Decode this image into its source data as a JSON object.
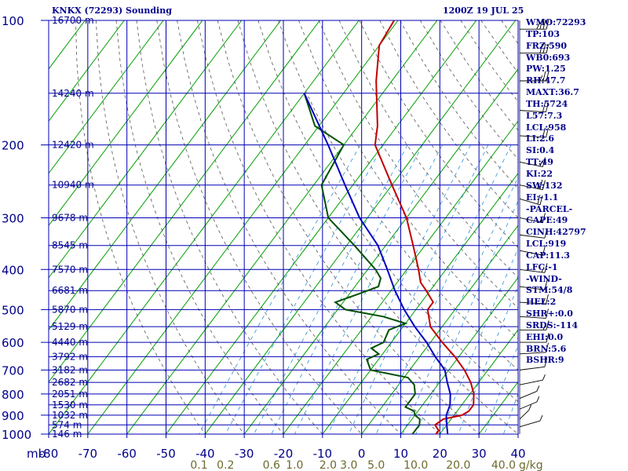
{
  "header": {
    "station_title": "KNKX (72293) Sounding",
    "valid_time": "1200Z 19 JUL 25"
  },
  "indices": [
    "WMO:72293",
    "TP:103",
    "FRZ:590",
    "WB0:693",
    "PW:1.25",
    "RH:47.7",
    "MAXT:36.7",
    "TH:5724",
    "L57:7.3",
    "LCL:958",
    "LI:2.6",
    "SI:0.4",
    "TT:49",
    "KI:22",
    "SW:132",
    "EI:-1.1",
    "-PARCEL-",
    "CAPE:49",
    "CINH:42797",
    "LCL:919",
    "CAP:11.3",
    "LFC:-1",
    "-WIND-",
    "STM:54/8",
    "HEL:2",
    "SHR+:0.0",
    "SRDS:-114",
    "EHI:0.0",
    "BRN:5.6",
    "BSHR:9"
  ],
  "colors": {
    "grid": "#0000b4",
    "isotherm_skew": "#00a000",
    "dry_adiabat": "#555555",
    "mixing_ratio": "#2f8fd8",
    "temperature": "#c00000",
    "dewpoint": "#005000",
    "parcel": "#0000c0",
    "text": "#00008b",
    "wind": "#000000"
  },
  "chart_data": {
    "type": "line",
    "title": "KNKX (72293) Sounding",
    "xlabel": "",
    "ylabel": "mb",
    "y_scale": "log-pressure",
    "xlim": [
      -80,
      40
    ],
    "ylim": [
      1000,
      100
    ],
    "x_ticks": [
      -80,
      -70,
      -60,
      -50,
      -40,
      -30,
      -20,
      -10,
      0,
      10,
      20,
      30,
      40
    ],
    "x_tick_labels": [
      "-80",
      "-70",
      "-60",
      "-50",
      "-40",
      "-30",
      "-20",
      "-10",
      "0",
      "10",
      "20",
      "30",
      "40"
    ],
    "pressure_levels": [
      100,
      200,
      300,
      400,
      500,
      600,
      700,
      800,
      900,
      1000
    ],
    "height_labels": [
      {
        "p": 100,
        "label": "16700 m"
      },
      {
        "p": 150,
        "label": "14240 m"
      },
      {
        "p": 200,
        "label": "12420 m"
      },
      {
        "p": 250,
        "label": "10940 m"
      },
      {
        "p": 300,
        "label": "9678 m"
      },
      {
        "p": 350,
        "label": "8545 m"
      },
      {
        "p": 400,
        "label": "7570 m"
      },
      {
        "p": 450,
        "label": "6681 m"
      },
      {
        "p": 500,
        "label": "5870 m"
      },
      {
        "p": 550,
        "label": "5129 m"
      },
      {
        "p": 600,
        "label": "4440 m"
      },
      {
        "p": 650,
        "label": "3792 m"
      },
      {
        "p": 700,
        "label": "3182 m"
      },
      {
        "p": 750,
        "label": "2682 m"
      },
      {
        "p": 800,
        "label": "2051 m"
      },
      {
        "p": 850,
        "label": "1530 m"
      },
      {
        "p": 900,
        "label": "1032 m"
      },
      {
        "p": 950,
        "label": "574 m"
      },
      {
        "p": 1000,
        "label": "146 m"
      }
    ],
    "mixing_ratio_labels": [
      "0.1",
      "0.2",
      "0.6",
      "1.0",
      "2.0",
      "3.0",
      "5.0",
      "10.0",
      "20.0",
      "40.0"
    ],
    "mixing_ratio_unit": "g/kg",
    "series": [
      {
        "name": "temperature",
        "points": [
          [
            100,
            -71
          ],
          [
            115,
            -70
          ],
          [
            140,
            -64
          ],
          [
            180,
            -55
          ],
          [
            200,
            -52
          ],
          [
            250,
            -40
          ],
          [
            300,
            -30
          ],
          [
            350,
            -23
          ],
          [
            400,
            -17
          ],
          [
            430,
            -14
          ],
          [
            450,
            -11
          ],
          [
            480,
            -7
          ],
          [
            500,
            -7
          ],
          [
            550,
            -3
          ],
          [
            600,
            3
          ],
          [
            650,
            9
          ],
          [
            700,
            14
          ],
          [
            750,
            18
          ],
          [
            800,
            21
          ],
          [
            850,
            23
          ],
          [
            880,
            23
          ],
          [
            900,
            22
          ],
          [
            920,
            18
          ],
          [
            950,
            17
          ],
          [
            980,
            19
          ],
          [
            1000,
            19
          ]
        ]
      },
      {
        "name": "dewpoint",
        "points": [
          [
            150,
            -80
          ],
          [
            180,
            -71
          ],
          [
            200,
            -60
          ],
          [
            250,
            -58
          ],
          [
            300,
            -50
          ],
          [
            350,
            -38
          ],
          [
            400,
            -28
          ],
          [
            420,
            -25
          ],
          [
            440,
            -24
          ],
          [
            450,
            -26
          ],
          [
            460,
            -28
          ],
          [
            480,
            -32
          ],
          [
            500,
            -28
          ],
          [
            520,
            -17
          ],
          [
            540,
            -10
          ],
          [
            560,
            -13
          ],
          [
            600,
            -12
          ],
          [
            620,
            -14
          ],
          [
            640,
            -11
          ],
          [
            660,
            -13
          ],
          [
            700,
            -10
          ],
          [
            730,
            1
          ],
          [
            760,
            4
          ],
          [
            800,
            6
          ],
          [
            860,
            6
          ],
          [
            880,
            9
          ],
          [
            900,
            10
          ],
          [
            920,
            12
          ],
          [
            950,
            13
          ],
          [
            980,
            13
          ],
          [
            1000,
            13
          ]
        ]
      },
      {
        "name": "parcel",
        "points": [
          [
            150,
            -80
          ],
          [
            200,
            -64
          ],
          [
            250,
            -52
          ],
          [
            300,
            -42
          ],
          [
            350,
            -32
          ],
          [
            400,
            -25
          ],
          [
            450,
            -19
          ],
          [
            500,
            -13
          ],
          [
            550,
            -7
          ],
          [
            600,
            -1
          ],
          [
            650,
            4
          ],
          [
            700,
            9
          ],
          [
            750,
            12
          ],
          [
            800,
            15
          ],
          [
            850,
            17
          ],
          [
            900,
            18
          ],
          [
            950,
            20
          ],
          [
            1000,
            22
          ]
        ]
      }
    ],
    "wind_barbs": [
      {
        "p": 105,
        "dir": 270,
        "kt": 35
      },
      {
        "p": 120,
        "dir": 270,
        "kt": 30
      },
      {
        "p": 140,
        "dir": 270,
        "kt": 25
      },
      {
        "p": 165,
        "dir": 280,
        "kt": 20
      },
      {
        "p": 190,
        "dir": 280,
        "kt": 20
      },
      {
        "p": 220,
        "dir": 300,
        "kt": 15
      },
      {
        "p": 250,
        "dir": 300,
        "kt": 25
      },
      {
        "p": 270,
        "dir": 310,
        "kt": 20
      },
      {
        "p": 300,
        "dir": 300,
        "kt": 15
      },
      {
        "p": 330,
        "dir": 290,
        "kt": 10
      },
      {
        "p": 360,
        "dir": 300,
        "kt": 10
      },
      {
        "p": 400,
        "dir": 290,
        "kt": 15
      },
      {
        "p": 440,
        "dir": 290,
        "kt": 10
      },
      {
        "p": 480,
        "dir": 280,
        "kt": 15
      },
      {
        "p": 520,
        "dir": 280,
        "kt": 10
      },
      {
        "p": 560,
        "dir": 270,
        "kt": 15
      },
      {
        "p": 600,
        "dir": 270,
        "kt": 10
      },
      {
        "p": 640,
        "dir": 260,
        "kt": 10
      },
      {
        "p": 700,
        "dir": 250,
        "kt": 10
      },
      {
        "p": 760,
        "dir": 240,
        "kt": 5
      },
      {
        "p": 820,
        "dir": 220,
        "kt": 5
      },
      {
        "p": 870,
        "dir": 220,
        "kt": 5
      },
      {
        "p": 920,
        "dir": 200,
        "kt": 5
      },
      {
        "p": 960,
        "dir": 230,
        "kt": 5
      }
    ]
  }
}
